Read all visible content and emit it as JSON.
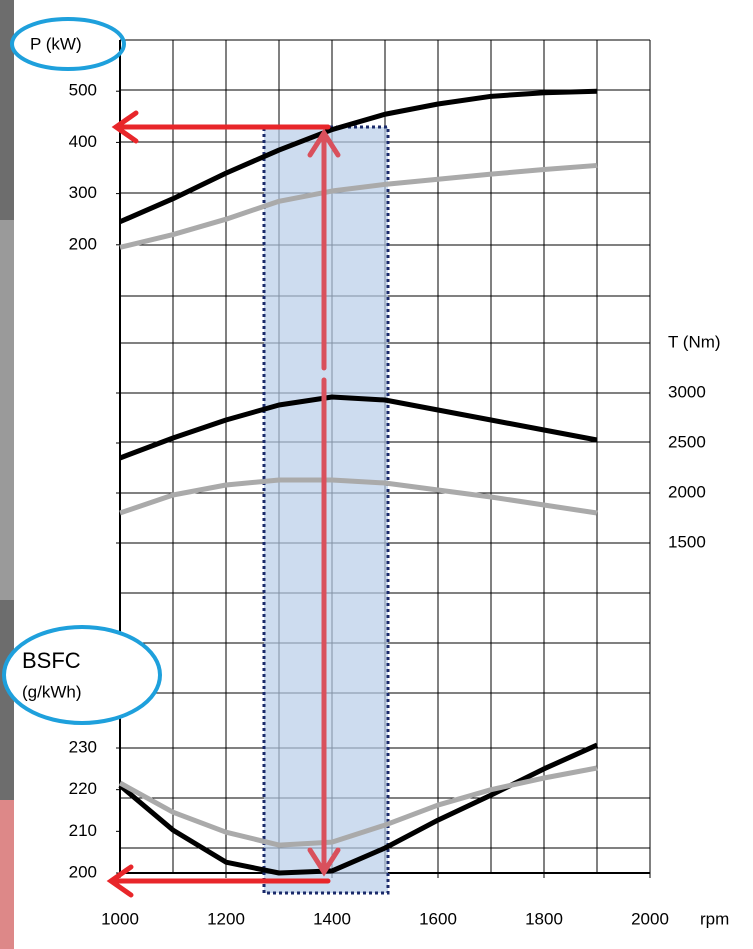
{
  "chart_data": [
    {
      "type": "line",
      "y_label": "P (kW)",
      "x": [
        1000,
        1100,
        1200,
        1300,
        1400,
        1500,
        1600,
        1700,
        1800,
        1900
      ],
      "series": [
        {
          "color": "#000000",
          "values": [
            245,
            290,
            340,
            385,
            425,
            455,
            475,
            490,
            497,
            500
          ]
        },
        {
          "color": "#aaaaaa",
          "values": [
            195,
            220,
            250,
            285,
            305,
            318,
            328,
            338,
            347,
            355
          ]
        }
      ],
      "ylim": [
        100,
        600
      ],
      "yticks": [
        200,
        300,
        400,
        500
      ]
    },
    {
      "type": "line",
      "y_label": "T (Nm)",
      "x": [
        1000,
        1100,
        1200,
        1300,
        1400,
        1500,
        1600,
        1700,
        1800,
        1900
      ],
      "series": [
        {
          "color": "#000000",
          "values": [
            2350,
            2550,
            2730,
            2880,
            2960,
            2930,
            2830,
            2730,
            2630,
            2530
          ]
        },
        {
          "color": "#aaaaaa",
          "values": [
            1800,
            1980,
            2080,
            2130,
            2130,
            2100,
            2030,
            1960,
            1880,
            1800
          ]
        }
      ],
      "ylim": [
        1000,
        4000
      ],
      "yticks": [
        1500,
        2000,
        2500,
        3000
      ]
    },
    {
      "type": "line",
      "y_label": "BSFC",
      "y_unit": "(g/kWh)",
      "x_label": "rpm",
      "x": [
        1000,
        1100,
        1200,
        1300,
        1400,
        1500,
        1600,
        1700,
        1800,
        1900
      ],
      "series": [
        {
          "color": "#000000",
          "values": [
            221,
            210.3,
            202.6,
            200,
            200.5,
            206,
            212.7,
            218.7,
            225,
            230.7
          ]
        },
        {
          "color": "#aaaaaa",
          "values": [
            221.6,
            214.6,
            209.8,
            206.7,
            207.4,
            211.5,
            216.3,
            220,
            222.8,
            225.2
          ]
        }
      ],
      "ylim": [
        200,
        260
      ],
      "yticks": [
        200,
        210,
        220,
        230
      ],
      "xlim": [
        1000,
        2000
      ],
      "xticks": [
        1000,
        1200,
        1400,
        1600,
        1800,
        2000
      ]
    }
  ]
}
